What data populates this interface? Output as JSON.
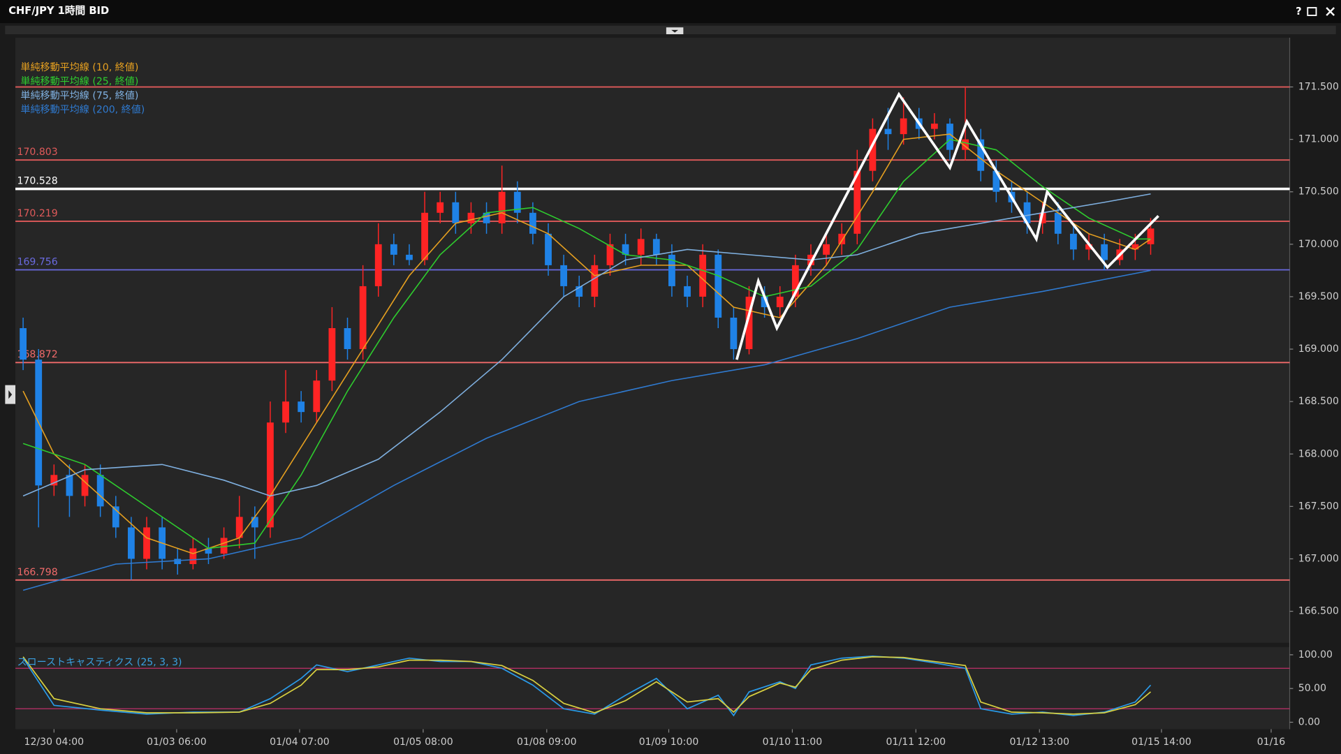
{
  "window": {
    "title": "CHF/JPY 1時間 BID",
    "help": "?"
  },
  "chart_data": {
    "type": "candlestick",
    "xlim": [
      -0.5,
      82
    ],
    "xticks": [
      {
        "value": 2.0,
        "label": "12/30 04:00"
      },
      {
        "value": 9.94,
        "label": "01/03 06:00"
      },
      {
        "value": 17.9,
        "label": "01/04 07:00"
      },
      {
        "value": 25.9,
        "label": "01/05 08:00"
      },
      {
        "value": 33.9,
        "label": "01/08 09:00"
      },
      {
        "value": 41.8,
        "label": "01/09 10:00"
      },
      {
        "value": 49.8,
        "label": "01/10 11:00"
      },
      {
        "value": 57.8,
        "label": "01/11 12:00"
      },
      {
        "value": 65.8,
        "label": "01/12 13:00"
      },
      {
        "value": 73.7,
        "label": "01/15 14:00"
      },
      {
        "value": 80.8,
        "label": "01/16"
      }
    ],
    "ylim": [
      166.2,
      171.97
    ],
    "yticks": [
      {
        "value": 166.5,
        "label": "166.500"
      },
      {
        "value": 167,
        "label": "167.000"
      },
      {
        "value": 167.5,
        "label": "167.500"
      },
      {
        "value": 168,
        "label": "168.000"
      },
      {
        "value": 168.5,
        "label": "168.500"
      },
      {
        "value": 169,
        "label": "169.000"
      },
      {
        "value": 169.5,
        "label": "169.500"
      },
      {
        "value": 170,
        "label": "170.000"
      },
      {
        "value": 170.5,
        "label": "170.500"
      },
      {
        "value": 171,
        "label": "171.000"
      },
      {
        "value": 171.5,
        "label": "171.500"
      }
    ],
    "up_color": "#ff2424",
    "down_color": "#1f82e6",
    "open": [
      169.2,
      168.9,
      167.7,
      167.8,
      167.6,
      167.8,
      167.5,
      167.3,
      167.0,
      167.3,
      167.0,
      166.95,
      167.1,
      167.05,
      167.2,
      167.4,
      167.3,
      168.3,
      168.5,
      168.4,
      168.7,
      169.2,
      169.0,
      169.6,
      170.0,
      169.9,
      169.85,
      170.3,
      170.4,
      170.2,
      170.3,
      170.2,
      170.5,
      170.3,
      170.1,
      169.8,
      169.6,
      169.5,
      169.8,
      170.0,
      169.9,
      170.05,
      169.9,
      169.6,
      169.5,
      169.9,
      169.3,
      169.0,
      169.5,
      169.4,
      169.5,
      169.8,
      169.9,
      170.0,
      170.1,
      170.7,
      171.1,
      171.05,
      171.2,
      171.1,
      171.15,
      170.9,
      171.0,
      170.7,
      170.5,
      170.4,
      170.2,
      170.3,
      170.1,
      169.95,
      170.0,
      169.85,
      169.95,
      170.0
    ],
    "high": [
      169.3,
      169.0,
      167.9,
      167.9,
      167.9,
      167.9,
      167.6,
      167.4,
      167.4,
      167.4,
      167.1,
      167.2,
      167.2,
      167.3,
      167.6,
      167.5,
      168.5,
      168.8,
      168.6,
      168.8,
      169.4,
      169.3,
      169.8,
      170.2,
      170.1,
      170.0,
      170.5,
      170.5,
      170.5,
      170.4,
      170.4,
      170.75,
      170.6,
      170.4,
      170.2,
      169.9,
      169.7,
      169.9,
      170.1,
      170.1,
      170.15,
      170.1,
      170.0,
      169.7,
      170.0,
      169.95,
      169.4,
      169.6,
      169.6,
      169.6,
      169.9,
      170.0,
      170.1,
      170.2,
      170.9,
      171.2,
      171.3,
      171.4,
      171.3,
      171.25,
      171.2,
      171.5,
      171.1,
      170.8,
      170.6,
      170.5,
      170.4,
      170.4,
      170.2,
      170.1,
      170.1,
      170.05,
      170.1,
      170.25
    ],
    "low": [
      168.8,
      167.3,
      167.6,
      167.4,
      167.5,
      167.4,
      167.2,
      166.8,
      166.9,
      166.9,
      166.85,
      166.9,
      166.95,
      167.0,
      167.1,
      167.0,
      167.2,
      168.2,
      168.3,
      168.3,
      168.6,
      168.9,
      168.9,
      169.5,
      169.8,
      169.8,
      169.8,
      170.2,
      170.1,
      170.1,
      170.1,
      170.1,
      170.2,
      170.0,
      169.7,
      169.5,
      169.4,
      169.4,
      169.7,
      169.8,
      169.8,
      169.8,
      169.5,
      169.4,
      169.4,
      169.2,
      168.9,
      168.95,
      169.3,
      169.3,
      169.4,
      169.7,
      169.8,
      169.9,
      170.0,
      170.6,
      170.9,
      170.95,
      171.0,
      171.0,
      170.8,
      170.8,
      170.6,
      170.4,
      170.3,
      170.1,
      170.1,
      170.0,
      169.85,
      169.85,
      169.75,
      169.8,
      169.85,
      169.9
    ],
    "close": [
      168.9,
      167.7,
      167.8,
      167.6,
      167.8,
      167.5,
      167.3,
      167.0,
      167.3,
      167.0,
      166.95,
      167.1,
      167.05,
      167.2,
      167.4,
      167.3,
      168.3,
      168.5,
      168.4,
      168.7,
      169.2,
      169.0,
      169.6,
      170.0,
      169.9,
      169.85,
      170.3,
      170.4,
      170.2,
      170.3,
      170.2,
      170.5,
      170.3,
      170.1,
      169.8,
      169.6,
      169.5,
      169.8,
      170.0,
      169.9,
      170.05,
      169.9,
      169.6,
      169.5,
      169.9,
      169.3,
      169.0,
      169.5,
      169.4,
      169.5,
      169.8,
      169.9,
      170.0,
      170.1,
      170.7,
      171.1,
      171.05,
      171.2,
      171.1,
      171.15,
      170.9,
      171.0,
      170.7,
      170.5,
      170.4,
      170.2,
      170.3,
      170.1,
      169.95,
      170.0,
      169.85,
      169.95,
      170.0,
      170.15
    ],
    "moving_averages": [
      {
        "name": "単純移動平均線 (10, 終値)",
        "color": "#e6a020",
        "x": [
          0,
          2,
          5,
          8,
          11,
          14,
          16,
          19,
          22,
          25,
          28,
          31,
          34,
          37,
          40,
          43,
          46,
          49,
          52,
          55,
          57,
          60,
          63,
          66,
          69,
          72,
          73
        ],
        "values": [
          168.6,
          168.0,
          167.6,
          167.2,
          167.05,
          167.2,
          167.6,
          168.3,
          169.0,
          169.7,
          170.2,
          170.3,
          170.1,
          169.7,
          169.8,
          169.8,
          169.4,
          169.3,
          169.8,
          170.5,
          171.0,
          171.05,
          170.7,
          170.4,
          170.1,
          169.95,
          170.05
        ]
      },
      {
        "name": "単純移動平均線 (25, 終値)",
        "color": "#2ecc2e",
        "x": [
          0,
          4,
          8,
          12,
          15,
          18,
          21,
          24,
          27,
          30,
          33,
          36,
          39,
          42,
          45,
          48,
          51,
          54,
          57,
          60,
          63,
          66,
          69,
          72,
          73
        ],
        "values": [
          168.1,
          167.9,
          167.5,
          167.1,
          167.15,
          167.8,
          168.6,
          169.3,
          169.9,
          170.3,
          170.35,
          170.15,
          169.9,
          169.85,
          169.7,
          169.5,
          169.6,
          169.95,
          170.6,
          171.0,
          170.9,
          170.55,
          170.25,
          170.05,
          170.05
        ]
      },
      {
        "name": "単純移動平均線 (75, 終値)",
        "color": "#7fb0e0",
        "x": [
          0,
          4,
          9,
          13,
          16,
          19,
          23,
          27,
          31,
          35,
          39,
          43,
          47,
          51,
          54,
          58,
          62,
          66,
          70,
          73
        ],
        "values": [
          167.6,
          167.85,
          167.9,
          167.75,
          167.6,
          167.7,
          167.95,
          168.4,
          168.9,
          169.5,
          169.85,
          169.95,
          169.9,
          169.85,
          169.9,
          170.1,
          170.2,
          170.3,
          170.4,
          170.48
        ]
      },
      {
        "name": "単純移動平均線 (200, 終値)",
        "color": "#2f7ad0",
        "x": [
          0,
          6,
          12,
          18,
          24,
          30,
          36,
          42,
          48,
          54,
          60,
          66,
          73
        ],
        "values": [
          166.7,
          166.95,
          167.0,
          167.2,
          167.7,
          168.15,
          168.5,
          168.7,
          168.85,
          169.1,
          169.4,
          169.55,
          169.75
        ]
      }
    ],
    "levels": [
      {
        "value": 170.803,
        "color": "#e05a5a"
      },
      {
        "value": 170.528,
        "color": "#ffffff"
      },
      {
        "value": 170.219,
        "color": "#e05a5a"
      },
      {
        "value": 169.756,
        "color": "#6a6ae0"
      },
      {
        "value": 168.872,
        "color": "#f06a6a"
      },
      {
        "value": 166.798,
        "color": "#f06a6a"
      }
    ],
    "resistance_lines": [
      171.5
    ],
    "zigzag": {
      "color": "#ffffff",
      "x": [
        46.2,
        47.6,
        48.8,
        56.7,
        60.0,
        61.1,
        65.6,
        66.3,
        70.2,
        73.5
      ],
      "values": [
        168.9,
        169.65,
        169.2,
        171.43,
        170.73,
        171.17,
        170.05,
        170.5,
        169.78,
        170.27
      ]
    },
    "stochastic": {
      "title": "スローストキャスティクス (25, 3, 3)",
      "title_color": "#3aa0e0",
      "ylim": [
        -10.3,
        111.5
      ],
      "yticks": [
        {
          "value": 0,
          "label": "0.00"
        },
        {
          "value": 50,
          "label": "50.00"
        },
        {
          "value": 100,
          "label": "100.00"
        }
      ],
      "levels": [
        20,
        80
      ],
      "level_color": "#c0306a",
      "x": [
        0,
        2,
        5,
        8,
        11,
        14,
        16,
        18,
        19,
        21,
        23,
        25,
        27,
        29,
        31,
        33,
        35,
        37,
        39,
        41,
        43,
        45,
        46,
        47,
        49,
        50,
        51,
        53,
        55,
        57,
        59,
        61,
        62,
        64,
        66,
        68,
        70,
        72,
        73
      ],
      "series": [
        {
          "color": "#2a9ae8",
          "values": [
            95,
            25,
            18,
            12,
            15,
            15,
            35,
            65,
            85,
            75,
            85,
            95,
            90,
            90,
            80,
            55,
            20,
            12,
            40,
            65,
            20,
            40,
            10,
            45,
            60,
            50,
            85,
            95,
            98,
            95,
            88,
            80,
            20,
            12,
            15,
            10,
            15,
            30,
            55
          ]
        },
        {
          "color": "#d8d040",
          "values": [
            97,
            35,
            20,
            14,
            14,
            15,
            28,
            55,
            78,
            78,
            82,
            92,
            92,
            90,
            84,
            62,
            28,
            14,
            32,
            60,
            30,
            35,
            15,
            38,
            58,
            52,
            78,
            92,
            97,
            96,
            90,
            84,
            30,
            15,
            14,
            12,
            14,
            26,
            45
          ]
        }
      ]
    }
  }
}
